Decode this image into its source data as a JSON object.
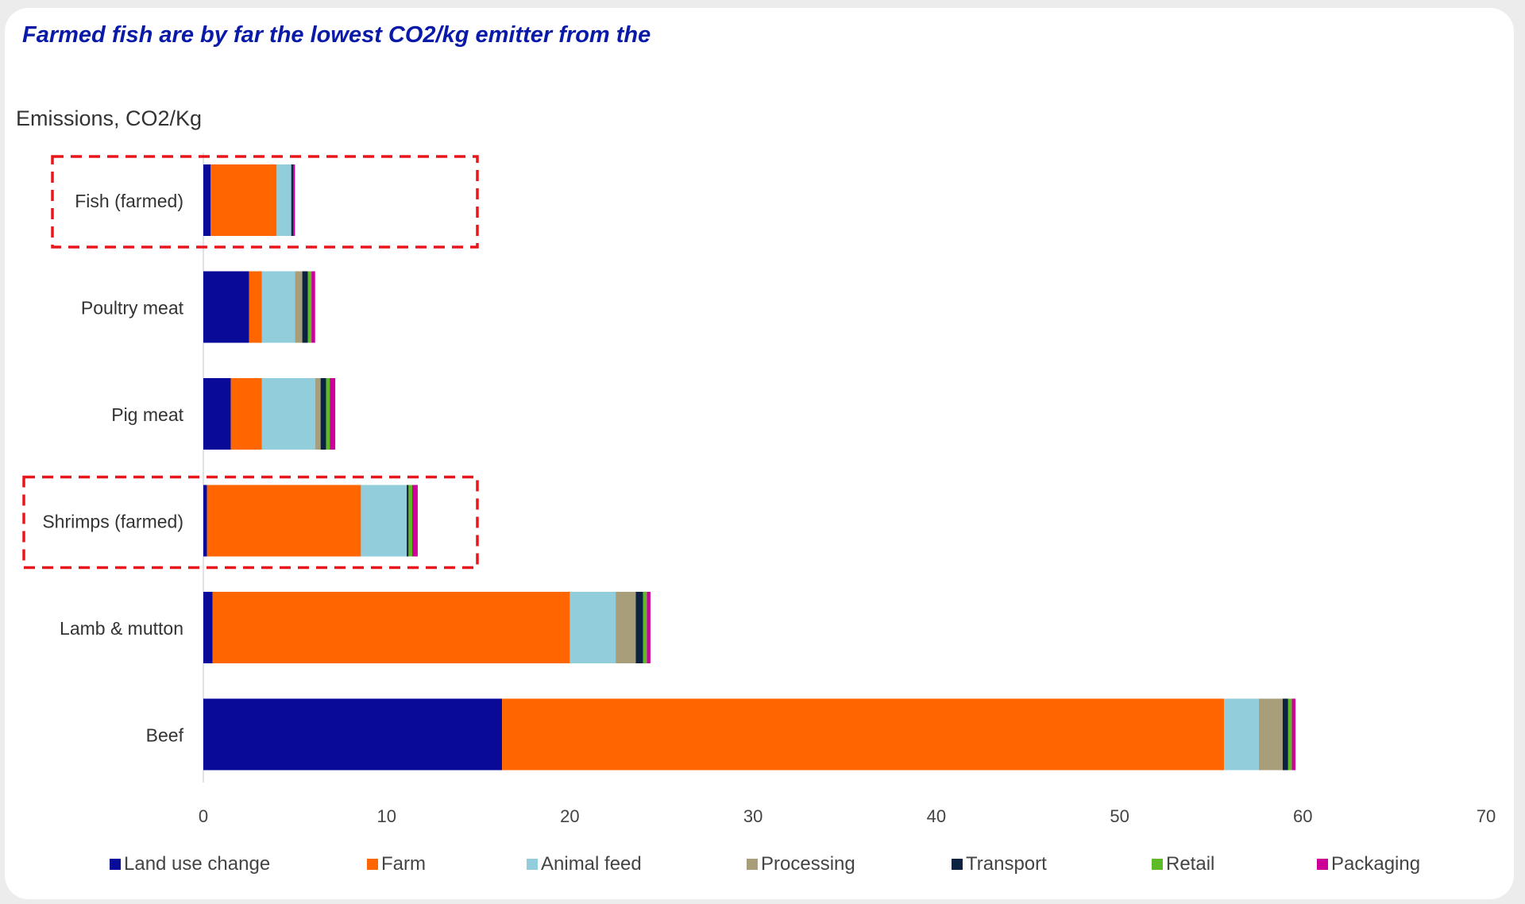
{
  "chart_data": {
    "type": "bar",
    "orientation": "horizontal",
    "stacked": true,
    "title": "Farmed fish are by far the lowest CO2/kg emitter from the",
    "ylabel": "Emissions, CO2/Kg",
    "xlabel": "",
    "xlim": [
      0,
      70
    ],
    "xticks": [
      0,
      10,
      20,
      30,
      40,
      50,
      60,
      70
    ],
    "grid": false,
    "legend_position": "bottom",
    "categories": [
      "Fish (farmed)",
      "Poultry meat",
      "Pig meat",
      "Shrimps (farmed)",
      "Lamb & mutton",
      "Beef"
    ],
    "highlighted_categories": [
      "Fish (farmed)",
      "Shrimps (farmed)"
    ],
    "highlight_color": "#e8161b",
    "series": [
      {
        "name": "Land use change",
        "color": "#0a0a99",
        "values": [
          0.4,
          2.5,
          1.5,
          0.2,
          0.5,
          16.3
        ]
      },
      {
        "name": "Farm",
        "color": "#ff6600",
        "values": [
          3.6,
          0.7,
          1.7,
          8.4,
          19.5,
          39.4
        ]
      },
      {
        "name": "Animal feed",
        "color": "#92cddc",
        "values": [
          0.8,
          1.8,
          2.9,
          2.5,
          2.5,
          1.9
        ]
      },
      {
        "name": "Processing",
        "color": "#a89f7a",
        "values": [
          0.0,
          0.4,
          0.3,
          0.0,
          1.1,
          1.3
        ]
      },
      {
        "name": "Transport",
        "color": "#0b2240",
        "values": [
          0.1,
          0.3,
          0.3,
          0.1,
          0.4,
          0.3
        ]
      },
      {
        "name": "Retail",
        "color": "#5dbb27",
        "values": [
          0.0,
          0.2,
          0.2,
          0.2,
          0.2,
          0.2
        ]
      },
      {
        "name": "Packaging",
        "color": "#cc0099",
        "values": [
          0.1,
          0.2,
          0.3,
          0.3,
          0.2,
          0.2
        ]
      }
    ]
  }
}
